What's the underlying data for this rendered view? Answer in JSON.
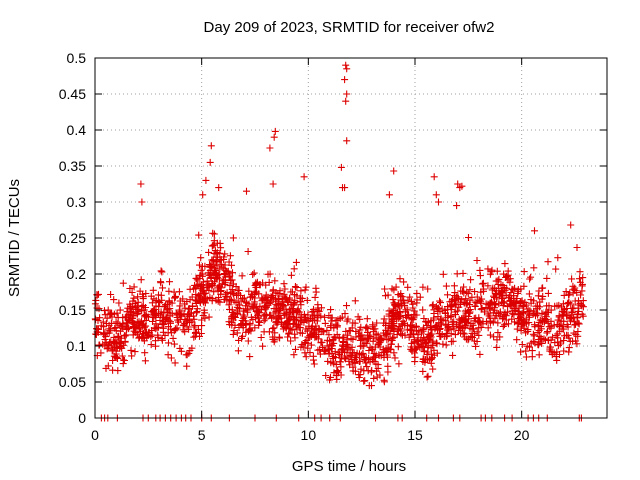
{
  "chart_data": {
    "type": "scatter",
    "title": "Day 209 of 2023, SRMTID for receiver ofw2",
    "xlabel": "GPS time / hours",
    "ylabel": "SRMTID / TECUs",
    "xlim": [
      0,
      24
    ],
    "ylim": [
      0,
      0.5
    ],
    "x_ticks": [
      0,
      5,
      10,
      15,
      20
    ],
    "x_tick_labels": [
      "0",
      "5",
      "10",
      "15",
      "20"
    ],
    "y_ticks": [
      0,
      0.05,
      0.1,
      0.15,
      0.2,
      0.25,
      0.3,
      0.35,
      0.4,
      0.45,
      0.5
    ],
    "y_tick_labels": [
      "0",
      "0.05",
      "0.1",
      "0.15",
      "0.2",
      "0.25",
      "0.3",
      "0.35",
      "0.4",
      "0.45",
      "0.5"
    ],
    "grid": true,
    "marker": "+",
    "marker_color": "#dd0000",
    "series": [
      {
        "name": "SRMTID",
        "points_per_hour_estimate": 90,
        "profile_hours": [
          0,
          0.5,
          1,
          1.5,
          2,
          2.5,
          3,
          3.5,
          4,
          4.5,
          5,
          5.5,
          6,
          6.5,
          7,
          7.5,
          8,
          8.5,
          9,
          9.5,
          10,
          10.5,
          11,
          11.5,
          12,
          12.5,
          13,
          13.5,
          14,
          14.5,
          15,
          15.5,
          16,
          16.5,
          17,
          17.5,
          18,
          18.5,
          19,
          19.5,
          20,
          20.5,
          21,
          21.5,
          22,
          22.5,
          22.9
        ],
        "median_profile": [
          0.14,
          0.12,
          0.11,
          0.13,
          0.14,
          0.13,
          0.15,
          0.14,
          0.13,
          0.15,
          0.17,
          0.2,
          0.2,
          0.16,
          0.14,
          0.15,
          0.16,
          0.15,
          0.15,
          0.14,
          0.13,
          0.12,
          0.1,
          0.09,
          0.11,
          0.1,
          0.09,
          0.1,
          0.13,
          0.15,
          0.13,
          0.1,
          0.12,
          0.14,
          0.15,
          0.14,
          0.14,
          0.15,
          0.16,
          0.16,
          0.14,
          0.13,
          0.14,
          0.12,
          0.13,
          0.15,
          0.16
        ],
        "spread": 0.05,
        "spikes": [
          {
            "x": 2.15,
            "y": 0.325
          },
          {
            "x": 2.2,
            "y": 0.3
          },
          {
            "x": 5.05,
            "y": 0.31
          },
          {
            "x": 5.2,
            "y": 0.33
          },
          {
            "x": 5.4,
            "y": 0.355
          },
          {
            "x": 5.45,
            "y": 0.378
          },
          {
            "x": 5.8,
            "y": 0.32
          },
          {
            "x": 7.1,
            "y": 0.315
          },
          {
            "x": 8.2,
            "y": 0.375
          },
          {
            "x": 8.4,
            "y": 0.39
          },
          {
            "x": 8.45,
            "y": 0.398
          },
          {
            "x": 8.35,
            "y": 0.325
          },
          {
            "x": 9.8,
            "y": 0.335
          },
          {
            "x": 11.55,
            "y": 0.348
          },
          {
            "x": 11.6,
            "y": 0.32
          },
          {
            "x": 11.75,
            "y": 0.49
          },
          {
            "x": 11.8,
            "y": 0.485
          },
          {
            "x": 11.7,
            "y": 0.47
          },
          {
            "x": 11.8,
            "y": 0.45
          },
          {
            "x": 11.75,
            "y": 0.44
          },
          {
            "x": 11.8,
            "y": 0.385
          },
          {
            "x": 11.7,
            "y": 0.32
          },
          {
            "x": 14.0,
            "y": 0.343
          },
          {
            "x": 13.8,
            "y": 0.31
          },
          {
            "x": 15.9,
            "y": 0.335
          },
          {
            "x": 16.0,
            "y": 0.31
          },
          {
            "x": 16.1,
            "y": 0.3
          },
          {
            "x": 17.0,
            "y": 0.325
          },
          {
            "x": 17.1,
            "y": 0.32
          },
          {
            "x": 17.2,
            "y": 0.322
          },
          {
            "x": 16.95,
            "y": 0.295
          },
          {
            "x": 20.6,
            "y": 0.26
          },
          {
            "x": 22.3,
            "y": 0.268
          }
        ],
        "zero_points_x": [
          0.3,
          0.45,
          0.6,
          1.05,
          2.25,
          2.5,
          2.85,
          3.05,
          3.3,
          3.55,
          3.8,
          4.05,
          4.25,
          4.5,
          5.0,
          5.45,
          6.3,
          7.5,
          8.5,
          9.55,
          10.3,
          10.6,
          11.0,
          11.5,
          13.15,
          14.2,
          14.4,
          15.55,
          16.1,
          16.8,
          17.1,
          18.1,
          18.3,
          18.6,
          19.2,
          19.55,
          20.3,
          20.55,
          20.8,
          21.2,
          22.7,
          22.8
        ]
      }
    ]
  }
}
